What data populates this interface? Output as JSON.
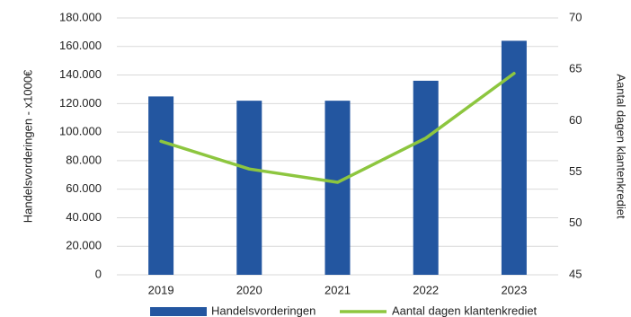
{
  "chart_data": {
    "type": "combo",
    "categories": [
      "2019",
      "2020",
      "2021",
      "2022",
      "2023"
    ],
    "series": [
      {
        "name": "Handelsvorderingen",
        "type": "bar",
        "color": "#2356a0",
        "values": [
          125000,
          122000,
          122000,
          136000,
          164000
        ]
      },
      {
        "name": "Aantal dagen klantenkrediet",
        "type": "line",
        "axis": "y2",
        "color": "#8dc63f",
        "values": [
          58.0,
          55.3,
          54.0,
          58.3,
          64.6
        ]
      }
    ],
    "y_label": "Handelsvorderingen - x1000€",
    "y2_label": "Aantal dagen klantenkrediet",
    "ylim": [
      0,
      180000
    ],
    "yticks": [
      0,
      {
        "value": 20000,
        "label": "20.000"
      },
      {
        "value": 40000,
        "label": "40.000"
      },
      {
        "value": 60000,
        "label": "60.000"
      },
      {
        "value": 80000,
        "label": "80.000"
      },
      {
        "value": 100000,
        "label": "100.000"
      },
      {
        "value": 120000,
        "label": "120.000"
      },
      {
        "value": 140000,
        "label": "140.000"
      },
      {
        "value": 160000,
        "label": "160.000"
      },
      {
        "value": 180000,
        "label": "180.000"
      }
    ],
    "y2lim": [
      45,
      70
    ],
    "y2ticks": [
      45,
      50,
      55,
      60,
      65,
      70
    ],
    "grid": true,
    "legend": "bottom"
  }
}
